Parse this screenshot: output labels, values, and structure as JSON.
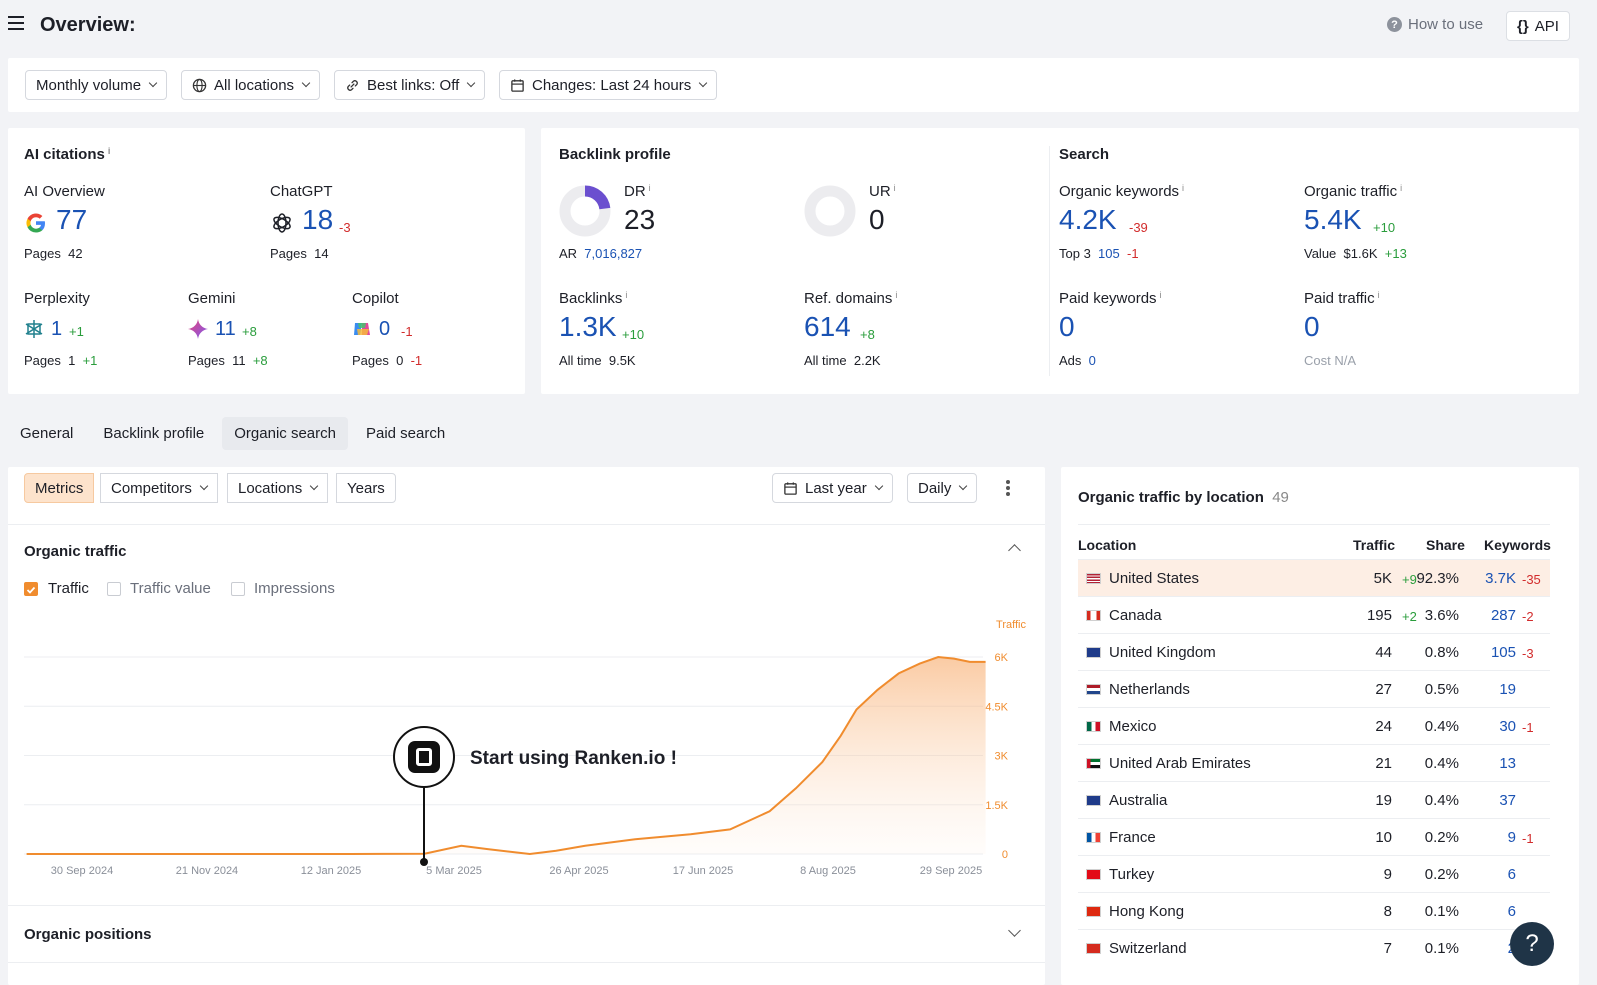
{
  "header": {
    "title": "Overview:",
    "how_to": "How to use",
    "api": "API"
  },
  "filters": {
    "volume": "Monthly volume",
    "locations": "All locations",
    "best_links": "Best links: Off",
    "changes": "Changes: Last 24 hours"
  },
  "ai_citations": {
    "title": "AI citations",
    "info": "i",
    "ai_overview": {
      "label": "AI Overview",
      "value": "77",
      "pages_label": "Pages",
      "pages": "42"
    },
    "chatgpt": {
      "label": "ChatGPT",
      "value": "18",
      "change": "-3",
      "pages_label": "Pages",
      "pages": "14"
    },
    "perplexity": {
      "label": "Perplexity",
      "value": "1",
      "change": "+1",
      "pages_label": "Pages",
      "pages": "1",
      "pages_change": "+1"
    },
    "gemini": {
      "label": "Gemini",
      "value": "11",
      "change": "+8",
      "pages_label": "Pages",
      "pages": "11",
      "pages_change": "+8"
    },
    "copilot": {
      "label": "Copilot",
      "value": "0",
      "change": "-1",
      "pages_label": "Pages",
      "pages": "0",
      "pages_change": "-1"
    }
  },
  "backlink_profile": {
    "title": "Backlink profile",
    "dr": {
      "label": "DR",
      "value": "23",
      "fraction": 0.23
    },
    "ur": {
      "label": "UR",
      "value": "0",
      "fraction": 0
    },
    "ar": {
      "label": "AR",
      "value": "7,016,827"
    },
    "backlinks": {
      "label": "Backlinks",
      "value": "1.3K",
      "change": "+10",
      "all_time_label": "All time",
      "all_time": "9.5K"
    },
    "ref_domains": {
      "label": "Ref. domains",
      "value": "614",
      "change": "+8",
      "all_time_label": "All time",
      "all_time": "2.2K"
    }
  },
  "search": {
    "title": "Search",
    "organic_keywords": {
      "label": "Organic keywords",
      "value": "4.2K",
      "change": "-39",
      "top3_label": "Top 3",
      "top3": "105",
      "top3_change": "-1"
    },
    "organic_traffic": {
      "label": "Organic traffic",
      "value": "5.4K",
      "change": "+10",
      "value_label": "Value",
      "value_amount": "$1.6K",
      "value_change": "+13"
    },
    "paid_keywords": {
      "label": "Paid keywords",
      "value": "0",
      "ads_label": "Ads",
      "ads": "0"
    },
    "paid_traffic": {
      "label": "Paid traffic",
      "value": "0",
      "cost": "Cost N/A"
    }
  },
  "tabs": [
    "General",
    "Backlink profile",
    "Organic search",
    "Paid search"
  ],
  "chart_panel": {
    "segments": [
      "Metrics",
      "Competitors",
      "Locations",
      "Years"
    ],
    "period": "Last year",
    "granularity": "Daily",
    "section_title": "Organic traffic",
    "checkboxes": [
      {
        "label": "Traffic",
        "checked": true
      },
      {
        "label": "Traffic value",
        "checked": false
      },
      {
        "label": "Impressions",
        "checked": false
      }
    ],
    "annotation": "Start using Ranken.io !",
    "positions_title": "Organic positions"
  },
  "chart_data": {
    "type": "area",
    "ylabel": "Traffic",
    "yticks": [
      "6K",
      "4.5K",
      "3K",
      "1.5K",
      "0"
    ],
    "ylim": [
      0,
      7500
    ],
    "xticks": [
      "30 Sep 2024",
      "21 Nov 2024",
      "12 Jan 2025",
      "5 Mar 2025",
      "26 Apr 2025",
      "17 Jun 2025",
      "8 Aug 2025",
      "29 Sep 2025"
    ],
    "color": "#f08c2e",
    "series": [
      {
        "x": [
          "2024-10-01",
          "2024-11-01",
          "2024-12-01",
          "2025-01-01",
          "2025-02-01",
          "2025-03-01",
          "2025-03-15",
          "2025-03-25",
          "2025-04-10",
          "2025-04-20",
          "2025-05-01",
          "2025-05-20",
          "2025-06-10",
          "2025-06-25",
          "2025-07-10",
          "2025-07-20",
          "2025-07-30",
          "2025-08-06",
          "2025-08-12",
          "2025-08-20",
          "2025-08-28",
          "2025-09-05",
          "2025-09-12",
          "2025-09-18",
          "2025-09-24",
          "2025-09-30"
        ],
        "y": [
          0,
          0,
          0,
          0,
          0,
          10,
          250,
          150,
          0,
          100,
          250,
          450,
          600,
          750,
          1300,
          2000,
          2800,
          3600,
          4400,
          5000,
          5500,
          5800,
          6000,
          5950,
          5850,
          5850
        ]
      }
    ]
  },
  "location_table": {
    "title": "Organic traffic by location",
    "count": "49",
    "headers": [
      "Location",
      "Traffic",
      "Share",
      "Keywords"
    ],
    "rows": [
      {
        "flag": "us",
        "name": "United States",
        "traffic": "5K",
        "traffic_change": "+9",
        "share": "92.3%",
        "keywords": "3.7K",
        "keywords_change": "-35"
      },
      {
        "flag": "ca",
        "name": "Canada",
        "traffic": "195",
        "traffic_change": "+2",
        "share": "3.6%",
        "keywords": "287",
        "keywords_change": "-2"
      },
      {
        "flag": "gb",
        "name": "United Kingdom",
        "traffic": "44",
        "traffic_change": "",
        "share": "0.8%",
        "keywords": "105",
        "keywords_change": "-3"
      },
      {
        "flag": "nl",
        "name": "Netherlands",
        "traffic": "27",
        "traffic_change": "",
        "share": "0.5%",
        "keywords": "19",
        "keywords_change": ""
      },
      {
        "flag": "mx",
        "name": "Mexico",
        "traffic": "24",
        "traffic_change": "",
        "share": "0.4%",
        "keywords": "30",
        "keywords_change": "-1"
      },
      {
        "flag": "ae",
        "name": "United Arab Emirates",
        "traffic": "21",
        "traffic_change": "",
        "share": "0.4%",
        "keywords": "13",
        "keywords_change": ""
      },
      {
        "flag": "au",
        "name": "Australia",
        "traffic": "19",
        "traffic_change": "",
        "share": "0.4%",
        "keywords": "37",
        "keywords_change": ""
      },
      {
        "flag": "fr",
        "name": "France",
        "traffic": "10",
        "traffic_change": "",
        "share": "0.2%",
        "keywords": "9",
        "keywords_change": "-1"
      },
      {
        "flag": "tr",
        "name": "Turkey",
        "traffic": "9",
        "traffic_change": "",
        "share": "0.2%",
        "keywords": "6",
        "keywords_change": ""
      },
      {
        "flag": "hk",
        "name": "Hong Kong",
        "traffic": "8",
        "traffic_change": "",
        "share": "0.1%",
        "keywords": "6",
        "keywords_change": ""
      },
      {
        "flag": "ch",
        "name": "Switzerland",
        "traffic": "7",
        "traffic_change": "",
        "share": "0.1%",
        "keywords": "2",
        "keywords_change": ""
      }
    ]
  },
  "help": {
    "label": "?"
  }
}
